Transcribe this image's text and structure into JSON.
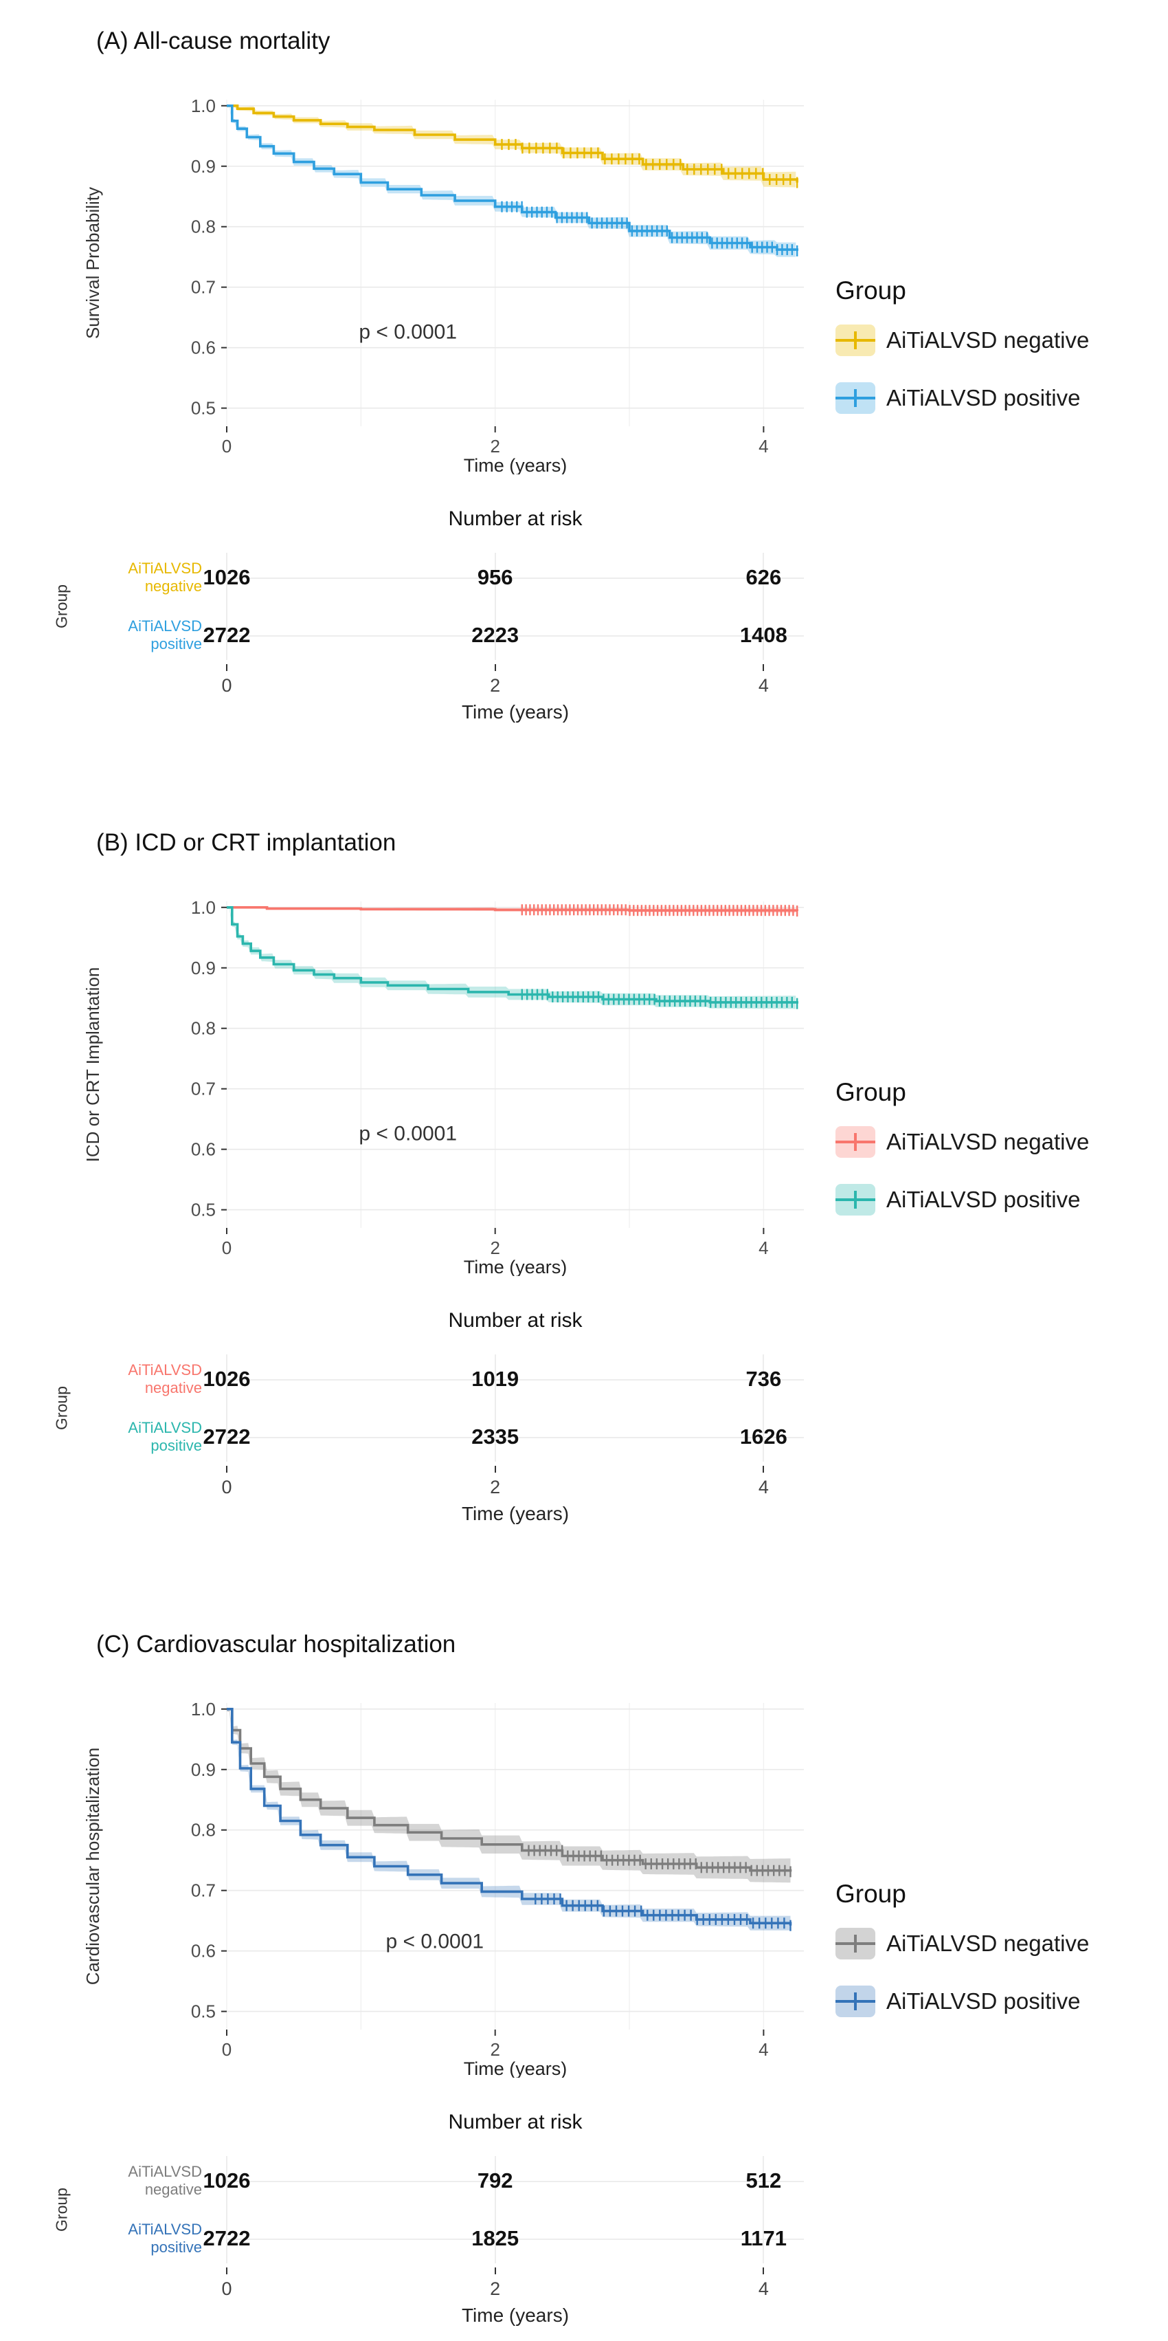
{
  "figure": {
    "background": "#ffffff"
  },
  "chart_data": [
    {
      "type": "line",
      "subtype": "kaplan-meier",
      "panel": "A",
      "title": "(A) All-cause mortality",
      "ylabel": "Survival Probability",
      "xlabel": "Time (years)",
      "legend_title": "Group",
      "risk_table_title": "Number at risk",
      "risk_axis_label": "Group",
      "pvalue": {
        "text": "p < 0.0001",
        "x": 1.35,
        "y": 0.615
      },
      "xlim": [
        0,
        4.3
      ],
      "ylim": [
        0.47,
        1.01
      ],
      "xticks": [
        0,
        2,
        4
      ],
      "xtick_labels": [
        "0",
        "2",
        "4"
      ],
      "yticks": [
        0.5,
        0.6,
        0.7,
        0.8,
        0.9,
        1.0
      ],
      "grid": true,
      "legend_position": "right",
      "series": [
        {
          "name": "AiTiALVSD negative",
          "label_lines": [
            "AiTiALVSD",
            "negative"
          ],
          "color": "#E7B800",
          "band_opacity": 0.28,
          "x": [
            0,
            0.08,
            0.2,
            0.35,
            0.5,
            0.7,
            0.9,
            1.1,
            1.4,
            1.7,
            2.0,
            2.2,
            2.5,
            2.8,
            3.1,
            3.4,
            3.7,
            4.0,
            4.25
          ],
          "y": [
            1.0,
            0.995,
            0.988,
            0.982,
            0.976,
            0.97,
            0.965,
            0.96,
            0.952,
            0.944,
            0.936,
            0.93,
            0.922,
            0.912,
            0.903,
            0.895,
            0.888,
            0.878,
            0.873
          ],
          "ci_half": [
            0.002,
            0.003,
            0.004,
            0.004,
            0.005,
            0.005,
            0.006,
            0.006,
            0.007,
            0.007,
            0.008,
            0.008,
            0.009,
            0.009,
            0.01,
            0.01,
            0.011,
            0.012,
            0.013
          ],
          "censor_marks": {
            "from": 2.05,
            "to": 4.25,
            "n": 44
          },
          "risk_counts": [
            1026,
            956,
            626
          ]
        },
        {
          "name": "AiTiALVSD positive",
          "label_lines": [
            "AiTiALVSD",
            "positive"
          ],
          "color": "#2E9FDF",
          "band_opacity": 0.28,
          "x": [
            0,
            0.04,
            0.08,
            0.15,
            0.25,
            0.35,
            0.5,
            0.65,
            0.8,
            1.0,
            1.2,
            1.45,
            1.7,
            2.0,
            2.2,
            2.45,
            2.7,
            3.0,
            3.3,
            3.6,
            3.9,
            4.1,
            4.25
          ],
          "y": [
            1.0,
            0.975,
            0.962,
            0.948,
            0.933,
            0.921,
            0.907,
            0.896,
            0.887,
            0.873,
            0.862,
            0.852,
            0.843,
            0.833,
            0.824,
            0.815,
            0.806,
            0.793,
            0.782,
            0.773,
            0.766,
            0.762,
            0.76
          ],
          "ci_half": [
            0.002,
            0.003,
            0.004,
            0.004,
            0.005,
            0.005,
            0.006,
            0.006,
            0.006,
            0.007,
            0.007,
            0.007,
            0.008,
            0.008,
            0.008,
            0.009,
            0.009,
            0.01,
            0.01,
            0.011,
            0.011,
            0.012,
            0.012
          ],
          "censor_marks": {
            "from": 2.05,
            "to": 4.25,
            "n": 60
          },
          "risk_counts": [
            2722,
            2223,
            1408
          ]
        }
      ]
    },
    {
      "type": "line",
      "subtype": "kaplan-meier",
      "panel": "B",
      "title": "(B) ICD or CRT implantation",
      "ylabel": "ICD or CRT Implantation",
      "xlabel": "Time (years)",
      "legend_title": "Group",
      "risk_table_title": "Number at risk",
      "risk_axis_label": "Group",
      "pvalue": {
        "text": "p < 0.0001",
        "x": 1.35,
        "y": 0.615
      },
      "xlim": [
        0,
        4.3
      ],
      "ylim": [
        0.47,
        1.01
      ],
      "xticks": [
        0,
        2,
        4
      ],
      "xtick_labels": [
        "0",
        "2",
        "4"
      ],
      "yticks": [
        0.5,
        0.6,
        0.7,
        0.8,
        0.9,
        1.0
      ],
      "grid": true,
      "legend_position": "right",
      "series": [
        {
          "name": "AiTiALVSD negative",
          "label_lines": [
            "AiTiALVSD",
            "negative"
          ],
          "color": "#F8766D",
          "band_opacity": 0.28,
          "x": [
            0,
            0.3,
            1.0,
            2.0,
            3.0,
            4.25
          ],
          "y": [
            1.0,
            0.998,
            0.997,
            0.996,
            0.995,
            0.994
          ],
          "ci_half": [
            0.001,
            0.002,
            0.002,
            0.003,
            0.003,
            0.004
          ],
          "censor_marks": {
            "from": 2.2,
            "to": 4.25,
            "n": 70
          },
          "risk_counts": [
            1026,
            1019,
            736
          ]
        },
        {
          "name": "AiTiALVSD positive",
          "label_lines": [
            "AiTiALVSD",
            "positive"
          ],
          "color": "#2BB6AD",
          "band_opacity": 0.28,
          "x": [
            0,
            0.04,
            0.08,
            0.12,
            0.18,
            0.25,
            0.35,
            0.5,
            0.65,
            0.8,
            1.0,
            1.2,
            1.5,
            1.8,
            2.1,
            2.4,
            2.8,
            3.2,
            3.6,
            4.25
          ],
          "y": [
            1.0,
            0.972,
            0.952,
            0.94,
            0.928,
            0.917,
            0.906,
            0.896,
            0.889,
            0.883,
            0.876,
            0.871,
            0.865,
            0.86,
            0.856,
            0.852,
            0.848,
            0.845,
            0.843,
            0.841
          ],
          "ci_half": [
            0.002,
            0.004,
            0.005,
            0.005,
            0.006,
            0.006,
            0.007,
            0.007,
            0.007,
            0.008,
            0.008,
            0.008,
            0.008,
            0.009,
            0.009,
            0.009,
            0.01,
            0.01,
            0.01,
            0.011
          ],
          "censor_marks": {
            "from": 2.2,
            "to": 4.25,
            "n": 55
          },
          "risk_counts": [
            2722,
            2335,
            1626
          ]
        }
      ]
    },
    {
      "type": "line",
      "subtype": "kaplan-meier",
      "panel": "C",
      "title": "(C) Cardiovascular hospitalization",
      "ylabel": "Cardiovascular hospitalization",
      "xlabel": "Time (years)",
      "legend_title": "Group",
      "risk_table_title": "Number at risk",
      "risk_axis_label": "Group",
      "pvalue": {
        "text": "p < 0.0001",
        "x": 1.55,
        "y": 0.605
      },
      "xlim": [
        0,
        4.3
      ],
      "ylim": [
        0.47,
        1.01
      ],
      "xticks": [
        0,
        2,
        4
      ],
      "xtick_labels": [
        "0",
        "2",
        "4"
      ],
      "yticks": [
        0.5,
        0.6,
        0.7,
        0.8,
        0.9,
        1.0
      ],
      "grid": true,
      "legend_position": "right",
      "series": [
        {
          "name": "AiTiALVSD negative",
          "label_lines": [
            "AiTiALVSD",
            "negative"
          ],
          "color": "#7D7D7D",
          "band_opacity": 0.32,
          "x": [
            0,
            0.04,
            0.1,
            0.18,
            0.28,
            0.4,
            0.55,
            0.7,
            0.9,
            1.1,
            1.35,
            1.6,
            1.9,
            2.2,
            2.5,
            2.8,
            3.1,
            3.5,
            3.9,
            4.2
          ],
          "y": [
            1.0,
            0.965,
            0.935,
            0.91,
            0.888,
            0.868,
            0.85,
            0.836,
            0.82,
            0.808,
            0.796,
            0.786,
            0.776,
            0.766,
            0.757,
            0.75,
            0.744,
            0.738,
            0.733,
            0.731
          ],
          "ci_half": [
            0.004,
            0.006,
            0.008,
            0.009,
            0.01,
            0.011,
            0.012,
            0.012,
            0.013,
            0.013,
            0.014,
            0.014,
            0.015,
            0.015,
            0.016,
            0.016,
            0.017,
            0.018,
            0.019,
            0.02
          ],
          "censor_marks": {
            "from": 2.25,
            "to": 4.2,
            "n": 48
          },
          "risk_counts": [
            1026,
            792,
            512
          ]
        },
        {
          "name": "AiTiALVSD positive",
          "label_lines": [
            "AiTiALVSD",
            "positive"
          ],
          "color": "#3473B8",
          "band_opacity": 0.28,
          "x": [
            0,
            0.04,
            0.1,
            0.18,
            0.28,
            0.4,
            0.55,
            0.7,
            0.9,
            1.1,
            1.35,
            1.6,
            1.9,
            2.2,
            2.5,
            2.8,
            3.1,
            3.5,
            3.9,
            4.2
          ],
          "y": [
            1.0,
            0.945,
            0.902,
            0.868,
            0.84,
            0.815,
            0.792,
            0.775,
            0.755,
            0.74,
            0.726,
            0.712,
            0.698,
            0.686,
            0.675,
            0.666,
            0.659,
            0.652,
            0.646,
            0.642
          ],
          "ci_half": [
            0.002,
            0.004,
            0.005,
            0.006,
            0.006,
            0.007,
            0.007,
            0.008,
            0.008,
            0.008,
            0.009,
            0.009,
            0.009,
            0.01,
            0.01,
            0.01,
            0.011,
            0.011,
            0.012,
            0.012
          ],
          "censor_marks": {
            "from": 2.3,
            "to": 4.2,
            "n": 42
          },
          "risk_counts": [
            2722,
            1825,
            1171
          ]
        }
      ]
    }
  ]
}
